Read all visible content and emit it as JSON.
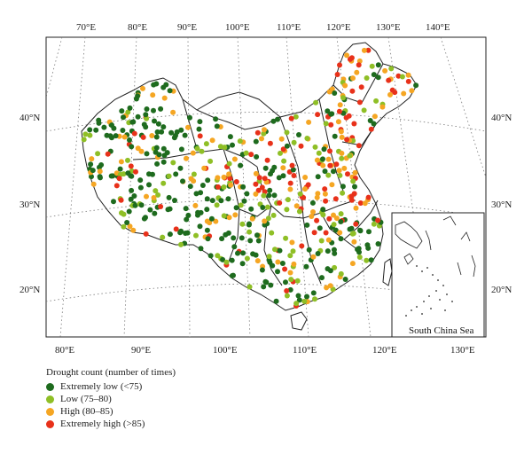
{
  "map": {
    "lat_labels": [
      "40°N",
      "30°N",
      "20°N"
    ],
    "lon_labels_top": [
      "70°E",
      "80°E",
      "90°E",
      "100°E",
      "110°E",
      "120°E",
      "130°E",
      "140°E"
    ],
    "lon_labels_bottom": [
      "80°E",
      "90°E",
      "100°E",
      "110°E",
      "120°E",
      "130°E"
    ],
    "inset_label": "South China Sea"
  },
  "legend": {
    "title": "Drought count (number of times)",
    "items": [
      {
        "label": "Extremely low (<75)",
        "color": "#1e6b1e",
        "class": "extremely-low"
      },
      {
        "label": "Low (75–80)",
        "color": "#8fbf26",
        "class": "low"
      },
      {
        "label": "High (80–85)",
        "color": "#f5a623",
        "class": "high"
      },
      {
        "label": "Extremely high (>85)",
        "color": "#e8311a",
        "class": "extremely-high"
      }
    ]
  }
}
